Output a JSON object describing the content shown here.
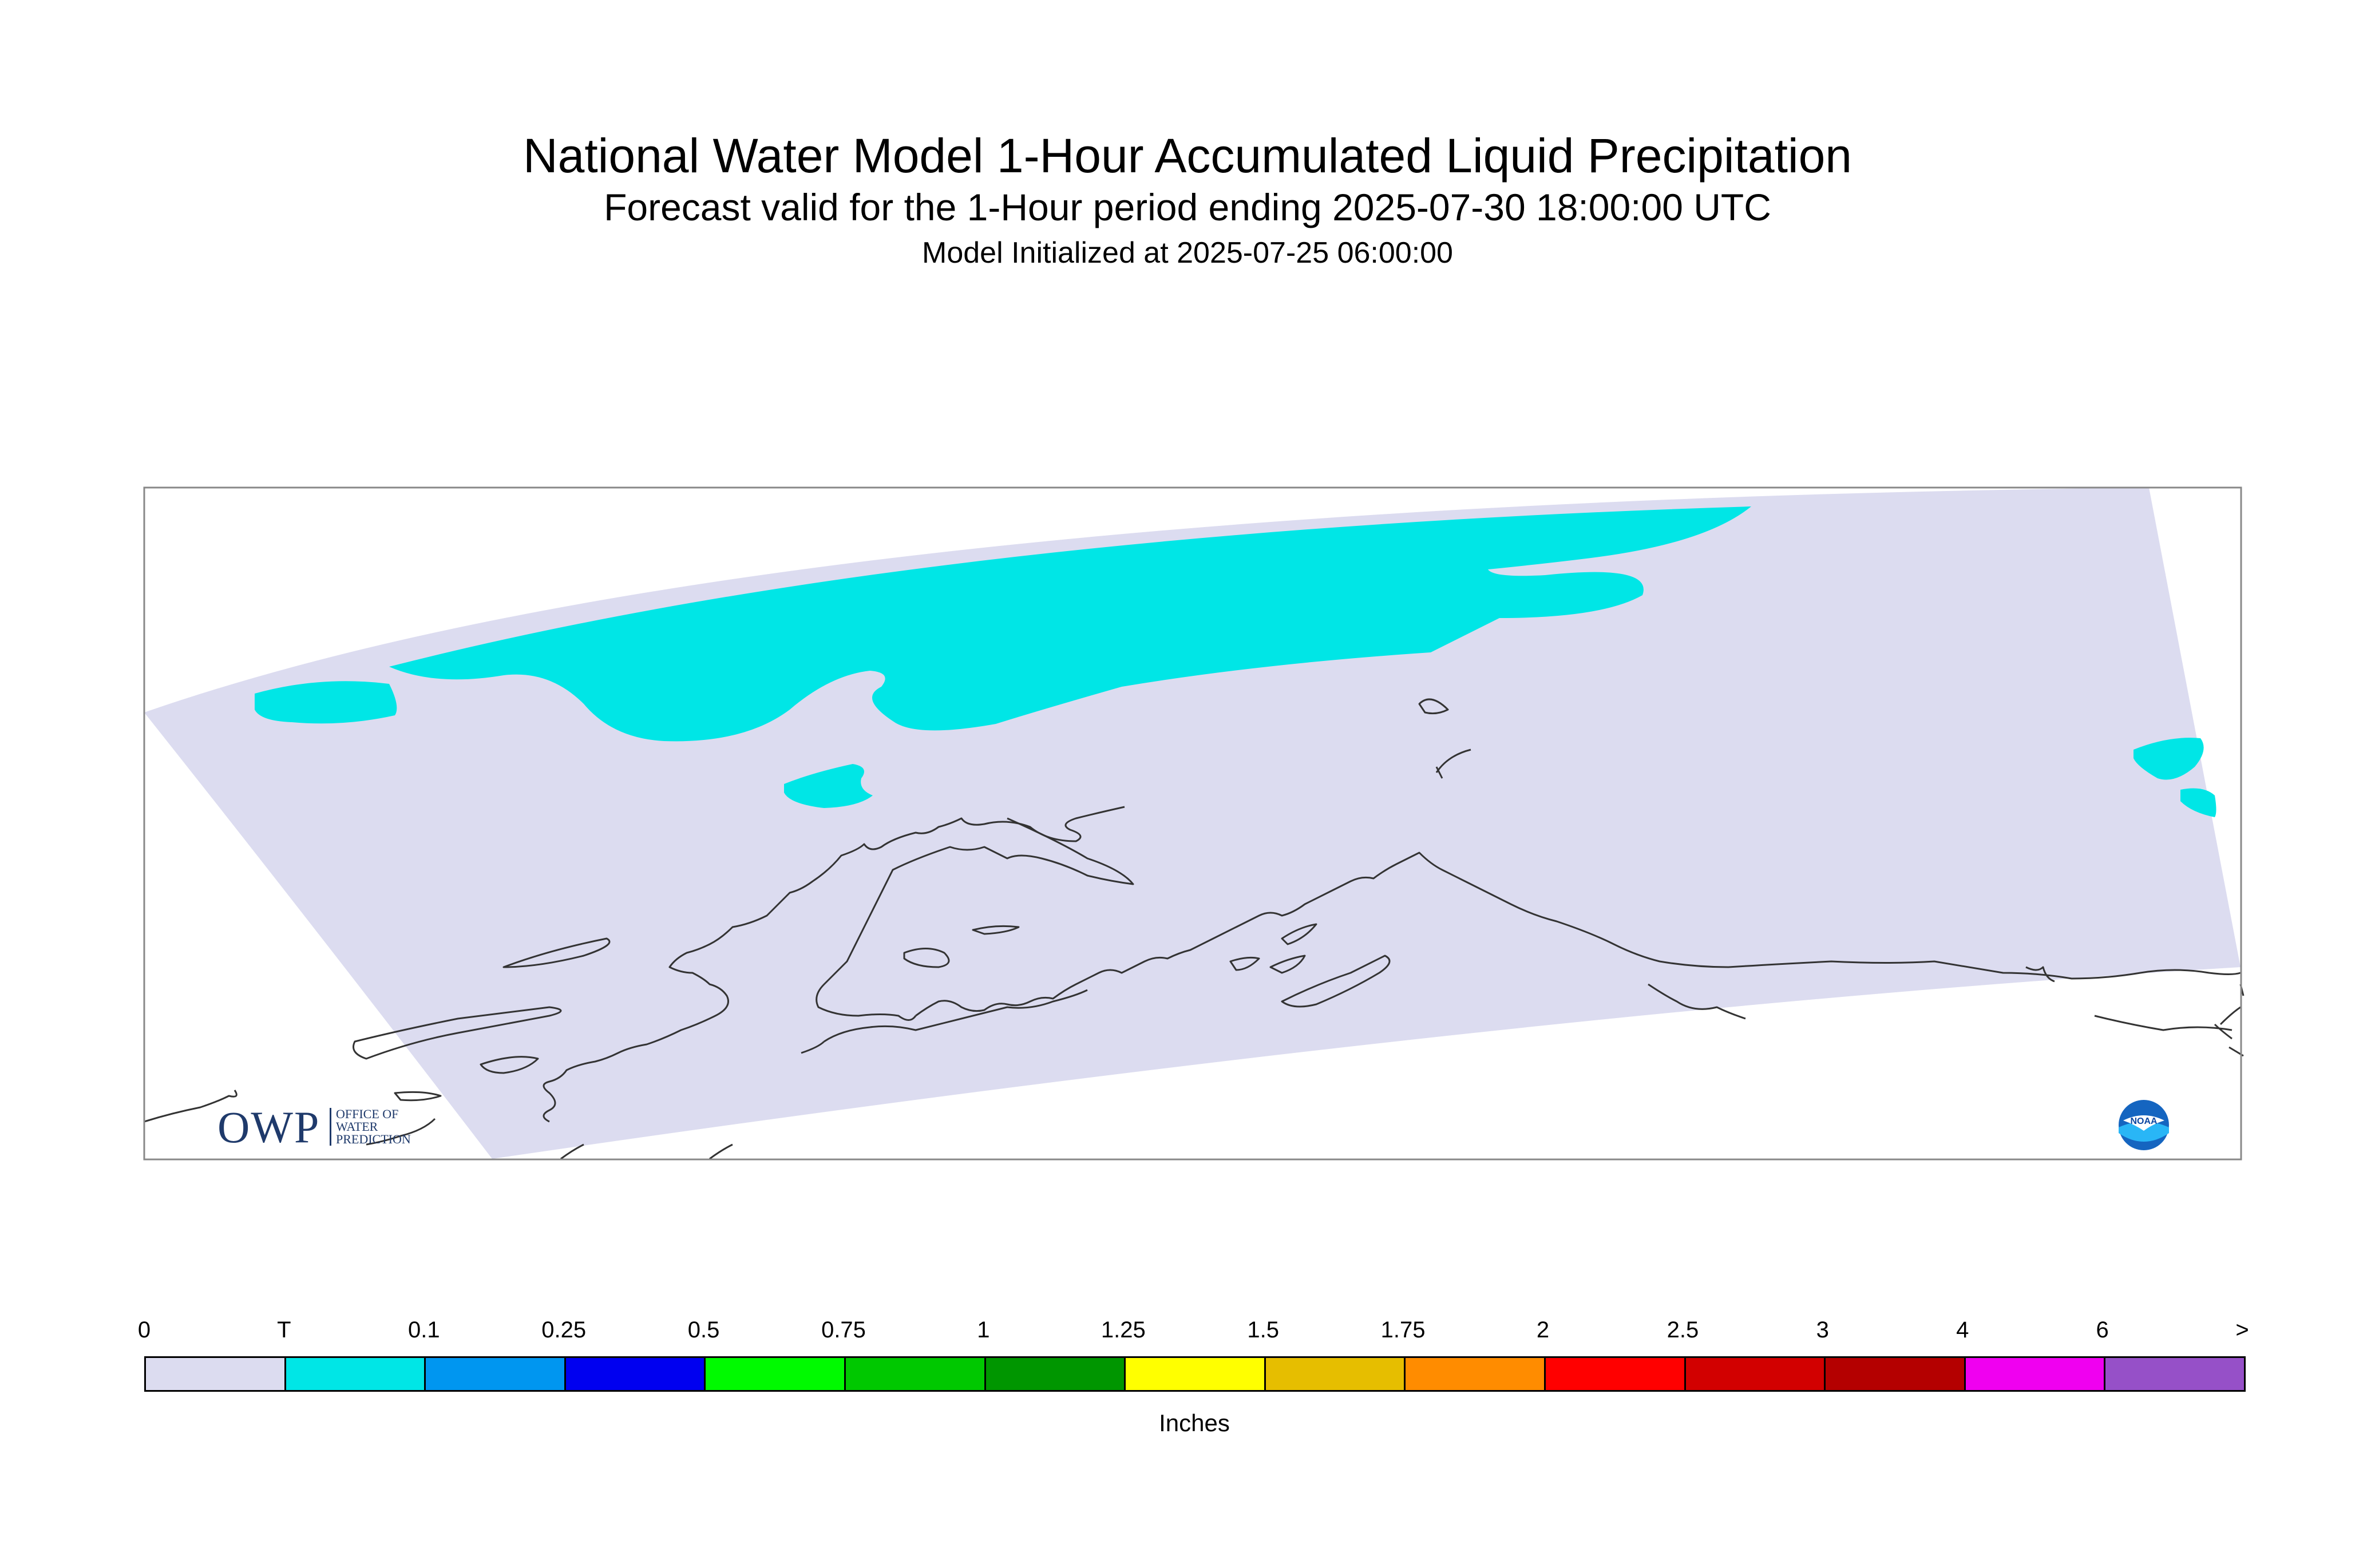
{
  "title": "National Water Model 1-Hour Accumulated Liquid Precipitation",
  "subtitle": "Forecast valid for the 1-Hour period ending 2025-07-30 18:00:00 UTC",
  "init_line": "Model Initialized at 2025-07-25 06:00:00",
  "colors": {
    "domain_fill": "#dcdcf0",
    "trace_precip": "#00e6e6",
    "coastline": "#333333",
    "frame": "#888888"
  },
  "logos": {
    "owp": {
      "text": "OWP",
      "subtitle_lines": [
        "OFFICE OF",
        "WATER",
        "PREDICTION"
      ]
    },
    "noaa": {
      "text": "NOAA"
    }
  },
  "legend": {
    "labels": [
      "0",
      "T",
      "0.1",
      "0.25",
      "0.5",
      "0.75",
      "1",
      "1.25",
      "1.5",
      "1.75",
      "2",
      "2.5",
      "3",
      "4",
      "6",
      ">"
    ],
    "colors": [
      "#dcdcf0",
      "#00e6e6",
      "#0096f0",
      "#0000f0",
      "#00fa00",
      "#00c800",
      "#009600",
      "#ffff00",
      "#e6be00",
      "#ff8c00",
      "#ff0000",
      "#d20000",
      "#b40000",
      "#f000f0",
      "#9650c8"
    ],
    "units": "Inches"
  }
}
